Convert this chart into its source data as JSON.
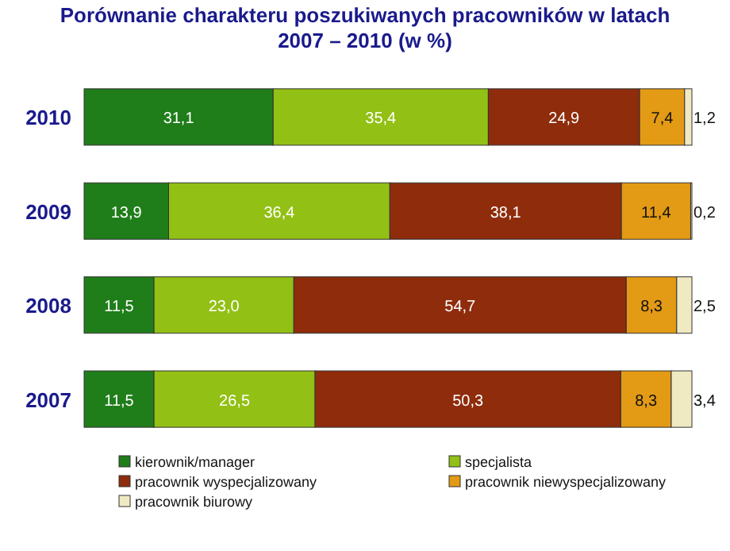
{
  "chart_data": {
    "type": "bar",
    "orientation": "horizontal",
    "stacked": true,
    "title": "Porównanie charakteru poszukiwanych pracowników w latach 2007 – 2010 (w %)",
    "categories": [
      "2010",
      "2009",
      "2008",
      "2007"
    ],
    "legend": "bottom",
    "series": [
      {
        "name": "kierownik/manager",
        "color": "#1f7d1a",
        "values": [
          31.1,
          13.9,
          11.5,
          11.5
        ],
        "value_labels": [
          "31,1",
          "13,9",
          "11,5",
          "11,5"
        ]
      },
      {
        "name": "specjalista",
        "color": "#92c014",
        "values": [
          35.4,
          36.4,
          23.0,
          26.5
        ],
        "value_labels": [
          "35,4",
          "36,4",
          "23,0",
          "26,5"
        ]
      },
      {
        "name": "pracownik wyspecjalizowany",
        "color": "#8e2c0c",
        "values": [
          24.9,
          38.1,
          54.7,
          50.3
        ],
        "value_labels": [
          "24,9",
          "38,1",
          "54,7",
          "50,3"
        ]
      },
      {
        "name": "pracownik niewyspecjalizowany",
        "color": "#e39a14",
        "values": [
          7.4,
          11.4,
          8.3,
          8.3
        ],
        "value_labels": [
          "7,4",
          "11,4",
          "8,3",
          "8,3"
        ]
      },
      {
        "name": "pracownik biurowy",
        "color": "#efeac2",
        "values": [
          1.2,
          0.2,
          2.5,
          3.4
        ],
        "value_labels": [
          "1,2",
          "0,2",
          "2,5",
          "3,4"
        ]
      }
    ]
  }
}
